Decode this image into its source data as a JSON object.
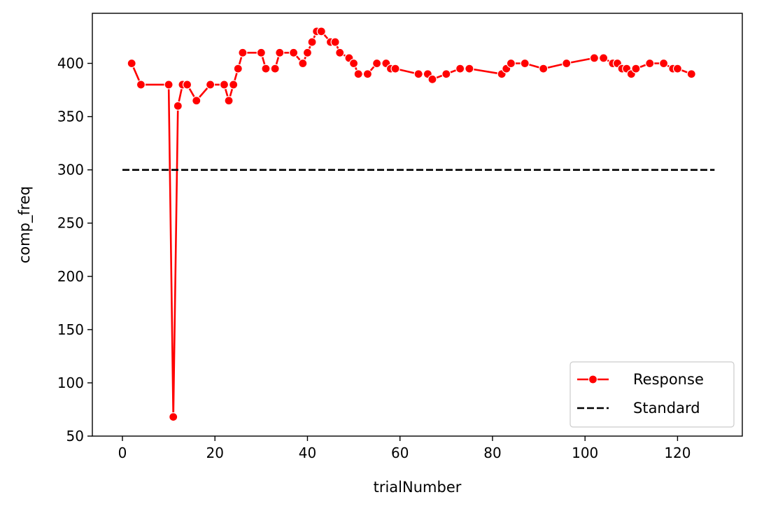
{
  "chart_data": {
    "type": "line",
    "title": "",
    "xlabel": "trialNumber",
    "ylabel": "comp_freq",
    "xlim": [
      -6.5,
      134
    ],
    "ylim": [
      50,
      447
    ],
    "xticks": [
      0,
      20,
      40,
      60,
      80,
      100,
      120
    ],
    "yticks": [
      50,
      100,
      150,
      200,
      250,
      300,
      350,
      400
    ],
    "grid": false,
    "legend_position": "lower-right",
    "series": [
      {
        "name": "Response",
        "color": "#ff0000",
        "marker": "circle",
        "x": [
          2,
          4,
          10,
          11,
          12,
          13,
          14,
          16,
          19,
          22,
          23,
          24,
          25,
          26,
          30,
          31,
          33,
          34,
          37,
          39,
          40,
          41,
          42,
          43,
          45,
          46,
          47,
          49,
          50,
          51,
          53,
          55,
          57,
          58,
          59,
          64,
          66,
          67,
          70,
          73,
          75,
          82,
          83,
          84,
          87,
          91,
          96,
          102,
          104,
          106,
          107,
          108,
          109,
          110,
          111,
          114,
          117,
          119,
          120,
          123
        ],
        "y": [
          400,
          380,
          380,
          68,
          360,
          380,
          380,
          365,
          380,
          380,
          365,
          380,
          395,
          410,
          410,
          395,
          395,
          410,
          410,
          400,
          410,
          420,
          430,
          430,
          420,
          420,
          410,
          405,
          400,
          390,
          390,
          400,
          400,
          395,
          395,
          390,
          390,
          385,
          390,
          395,
          395,
          390,
          395,
          400,
          400,
          395,
          400,
          405,
          405,
          400,
          400,
          395,
          395,
          390,
          395,
          400,
          400,
          395,
          395,
          390
        ]
      },
      {
        "name": "Standard",
        "color": "#000000",
        "dash": "dashed",
        "x": [
          0,
          128
        ],
        "y": [
          300,
          300
        ]
      }
    ]
  }
}
